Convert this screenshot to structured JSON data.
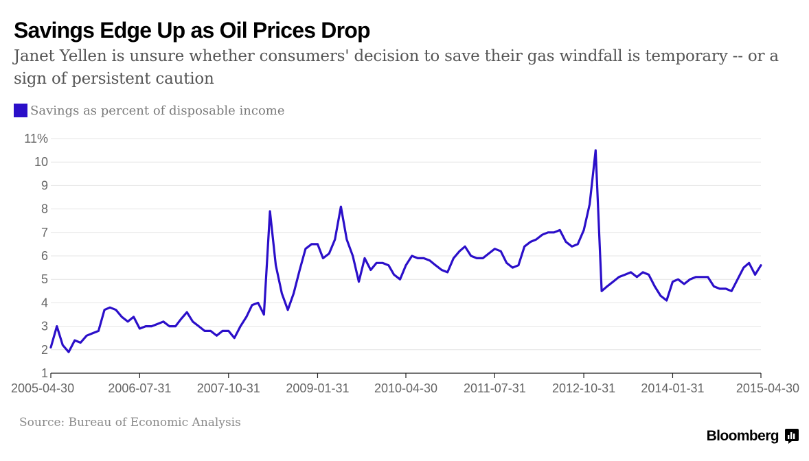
{
  "header": {
    "title": "Savings Edge Up as Oil Prices Drop",
    "subtitle": "Janet Yellen is unsure whether consumers' decision to save their gas windfall is temporary -- or a sign of persistent caution"
  },
  "legend": {
    "label": "Savings as percent of disposable income"
  },
  "footer": {
    "source": "Source: Bureau of Economic Analysis",
    "brand": "Bloomberg"
  },
  "colors": {
    "series": "#2b0fc9",
    "grid": "#e4e4e4",
    "axis": "#222222"
  },
  "chart_data": {
    "type": "line",
    "title": "Savings Edge Up as Oil Prices Drop",
    "xlabel": "",
    "ylabel": "",
    "x_range": [
      "2005-04-30",
      "2015-04-30"
    ],
    "ylim": [
      1,
      11
    ],
    "y_ticks": [
      {
        "value": 1,
        "label": "1"
      },
      {
        "value": 2,
        "label": "2"
      },
      {
        "value": 3,
        "label": "3"
      },
      {
        "value": 4,
        "label": "4"
      },
      {
        "value": 5,
        "label": "5"
      },
      {
        "value": 6,
        "label": "6"
      },
      {
        "value": 7,
        "label": "7"
      },
      {
        "value": 8,
        "label": "8"
      },
      {
        "value": 9,
        "label": "9"
      },
      {
        "value": 10,
        "label": "10"
      },
      {
        "value": 11,
        "label": "11%"
      }
    ],
    "x_ticks": [
      "2005-04-30",
      "2006-07-31",
      "2007-10-31",
      "2009-01-31",
      "2010-04-30",
      "2011-07-31",
      "2012-10-31",
      "2014-01-31",
      "2015-04-30"
    ],
    "grid": true,
    "legend_position": "top-left",
    "series": [
      {
        "name": "Savings as percent of disposable income",
        "points": [
          [
            "2005-04-30",
            2.1
          ],
          [
            "2005-05-31",
            3.0
          ],
          [
            "2005-06-30",
            2.2
          ],
          [
            "2005-07-31",
            1.9
          ],
          [
            "2005-08-31",
            2.4
          ],
          [
            "2005-09-30",
            2.3
          ],
          [
            "2005-10-31",
            2.6
          ],
          [
            "2005-11-30",
            2.7
          ],
          [
            "2005-12-31",
            2.8
          ],
          [
            "2006-01-31",
            3.7
          ],
          [
            "2006-02-28",
            3.8
          ],
          [
            "2006-03-31",
            3.7
          ],
          [
            "2006-04-30",
            3.4
          ],
          [
            "2006-05-31",
            3.2
          ],
          [
            "2006-06-30",
            3.4
          ],
          [
            "2006-07-31",
            2.9
          ],
          [
            "2006-08-31",
            3.0
          ],
          [
            "2006-09-30",
            3.0
          ],
          [
            "2006-10-31",
            3.1
          ],
          [
            "2006-11-30",
            3.2
          ],
          [
            "2006-12-31",
            3.0
          ],
          [
            "2007-01-31",
            3.0
          ],
          [
            "2007-02-28",
            3.3
          ],
          [
            "2007-03-31",
            3.6
          ],
          [
            "2007-04-30",
            3.2
          ],
          [
            "2007-05-31",
            3.0
          ],
          [
            "2007-06-30",
            2.8
          ],
          [
            "2007-07-31",
            2.8
          ],
          [
            "2007-08-31",
            2.6
          ],
          [
            "2007-09-30",
            2.8
          ],
          [
            "2007-10-31",
            2.8
          ],
          [
            "2007-11-30",
            2.5
          ],
          [
            "2007-12-31",
            3.0
          ],
          [
            "2008-01-31",
            3.4
          ],
          [
            "2008-02-29",
            3.9
          ],
          [
            "2008-03-31",
            4.0
          ],
          [
            "2008-04-30",
            3.5
          ],
          [
            "2008-05-31",
            7.9
          ],
          [
            "2008-06-30",
            5.6
          ],
          [
            "2008-07-31",
            4.4
          ],
          [
            "2008-08-31",
            3.7
          ],
          [
            "2008-09-30",
            4.4
          ],
          [
            "2008-10-31",
            5.4
          ],
          [
            "2008-11-30",
            6.3
          ],
          [
            "2008-12-31",
            6.5
          ],
          [
            "2009-01-31",
            6.5
          ],
          [
            "2009-02-28",
            5.9
          ],
          [
            "2009-03-31",
            6.1
          ],
          [
            "2009-04-30",
            6.7
          ],
          [
            "2009-05-31",
            8.1
          ],
          [
            "2009-06-30",
            6.7
          ],
          [
            "2009-07-31",
            6.0
          ],
          [
            "2009-08-31",
            4.9
          ],
          [
            "2009-09-30",
            5.9
          ],
          [
            "2009-10-31",
            5.4
          ],
          [
            "2009-11-30",
            5.7
          ],
          [
            "2009-12-31",
            5.7
          ],
          [
            "2010-01-31",
            5.6
          ],
          [
            "2010-02-28",
            5.2
          ],
          [
            "2010-03-31",
            5.0
          ],
          [
            "2010-04-30",
            5.6
          ],
          [
            "2010-05-31",
            6.0
          ],
          [
            "2010-06-30",
            5.9
          ],
          [
            "2010-07-31",
            5.9
          ],
          [
            "2010-08-31",
            5.8
          ],
          [
            "2010-09-30",
            5.6
          ],
          [
            "2010-10-31",
            5.4
          ],
          [
            "2010-11-30",
            5.3
          ],
          [
            "2010-12-31",
            5.9
          ],
          [
            "2011-01-31",
            6.2
          ],
          [
            "2011-02-28",
            6.4
          ],
          [
            "2011-03-31",
            6.0
          ],
          [
            "2011-04-30",
            5.9
          ],
          [
            "2011-05-31",
            5.9
          ],
          [
            "2011-06-30",
            6.1
          ],
          [
            "2011-07-31",
            6.3
          ],
          [
            "2011-08-31",
            6.2
          ],
          [
            "2011-09-30",
            5.7
          ],
          [
            "2011-10-31",
            5.5
          ],
          [
            "2011-11-30",
            5.6
          ],
          [
            "2011-12-31",
            6.4
          ],
          [
            "2012-01-31",
            6.6
          ],
          [
            "2012-02-29",
            6.7
          ],
          [
            "2012-03-31",
            6.9
          ],
          [
            "2012-04-30",
            7.0
          ],
          [
            "2012-05-31",
            7.0
          ],
          [
            "2012-06-30",
            7.1
          ],
          [
            "2012-07-31",
            6.6
          ],
          [
            "2012-08-31",
            6.4
          ],
          [
            "2012-09-30",
            6.5
          ],
          [
            "2012-10-31",
            7.1
          ],
          [
            "2012-11-30",
            8.2
          ],
          [
            "2012-12-31",
            10.5
          ],
          [
            "2013-01-31",
            4.5
          ],
          [
            "2013-02-28",
            4.7
          ],
          [
            "2013-03-31",
            4.9
          ],
          [
            "2013-04-30",
            5.1
          ],
          [
            "2013-05-31",
            5.2
          ],
          [
            "2013-06-30",
            5.3
          ],
          [
            "2013-07-31",
            5.1
          ],
          [
            "2013-08-31",
            5.3
          ],
          [
            "2013-09-30",
            5.2
          ],
          [
            "2013-10-31",
            4.7
          ],
          [
            "2013-11-30",
            4.3
          ],
          [
            "2013-12-31",
            4.1
          ],
          [
            "2014-01-31",
            4.9
          ],
          [
            "2014-02-28",
            5.0
          ],
          [
            "2014-03-31",
            4.8
          ],
          [
            "2014-04-30",
            5.0
          ],
          [
            "2014-05-31",
            5.1
          ],
          [
            "2014-06-30",
            5.1
          ],
          [
            "2014-07-31",
            5.1
          ],
          [
            "2014-08-31",
            4.7
          ],
          [
            "2014-09-30",
            4.6
          ],
          [
            "2014-10-31",
            4.6
          ],
          [
            "2014-11-30",
            4.5
          ],
          [
            "2014-12-31",
            5.0
          ],
          [
            "2015-01-31",
            5.5
          ],
          [
            "2015-02-28",
            5.7
          ],
          [
            "2015-03-31",
            5.2
          ],
          [
            "2015-04-30",
            5.6
          ]
        ]
      }
    ]
  }
}
